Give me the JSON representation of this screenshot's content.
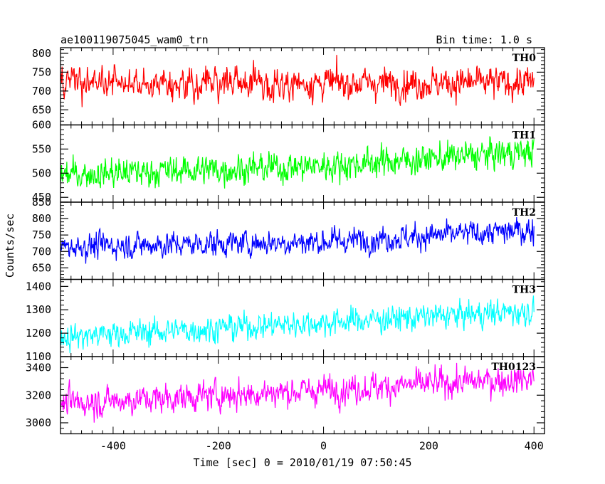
{
  "header": {
    "title": "ae100119075045_wam0_trn",
    "bin_time": "Bin time: 1.0 s"
  },
  "chart_data": {
    "type": "line",
    "xlabel": "Time [sec] 0 = 2010/01/19 07:50:45",
    "ylabel": "Counts/sec",
    "xlim": [
      -500,
      420
    ],
    "xticks": [
      -400,
      -200,
      0,
      200,
      400
    ],
    "x_sampling": {
      "start": -500,
      "end": 400,
      "step": 1
    },
    "grid": false,
    "panels": [
      {
        "name": "TH0",
        "color": "#ff0000",
        "ylim": [
          610,
          815
        ],
        "yticks": [
          650,
          700,
          750,
          800
        ],
        "trend": [
          [
            -500,
            720
          ],
          [
            400,
            722
          ]
        ],
        "noise_sigma": 30
      },
      {
        "name": "TH1",
        "color": "#00ff00",
        "ylim": [
          440,
          600
        ],
        "yticks": [
          450,
          500,
          550,
          600
        ],
        "trend": [
          [
            -500,
            497
          ],
          [
            0,
            515
          ],
          [
            400,
            545
          ]
        ],
        "noise_sigma": 22
      },
      {
        "name": "TH2",
        "color": "#0000ff",
        "ylim": [
          615,
          850
        ],
        "yticks": [
          650,
          700,
          750,
          800,
          850
        ],
        "trend": [
          [
            -500,
            715
          ],
          [
            0,
            730
          ],
          [
            400,
            765
          ]
        ],
        "noise_sigma": 28
      },
      {
        "name": "TH3",
        "color": "#00ffff",
        "ylim": [
          1100,
          1430
        ],
        "yticks": [
          1100,
          1200,
          1300,
          1400
        ],
        "trend": [
          [
            -500,
            1185
          ],
          [
            400,
            1295
          ]
        ],
        "noise_sigma": 40
      },
      {
        "name": "TH0123",
        "color": "#ff00ff",
        "ylim": [
          2920,
          3480
        ],
        "yticks": [
          3000,
          3200,
          3400
        ],
        "trend": [
          [
            -500,
            3140
          ],
          [
            400,
            3320
          ]
        ],
        "noise_sigma": 75
      }
    ]
  }
}
